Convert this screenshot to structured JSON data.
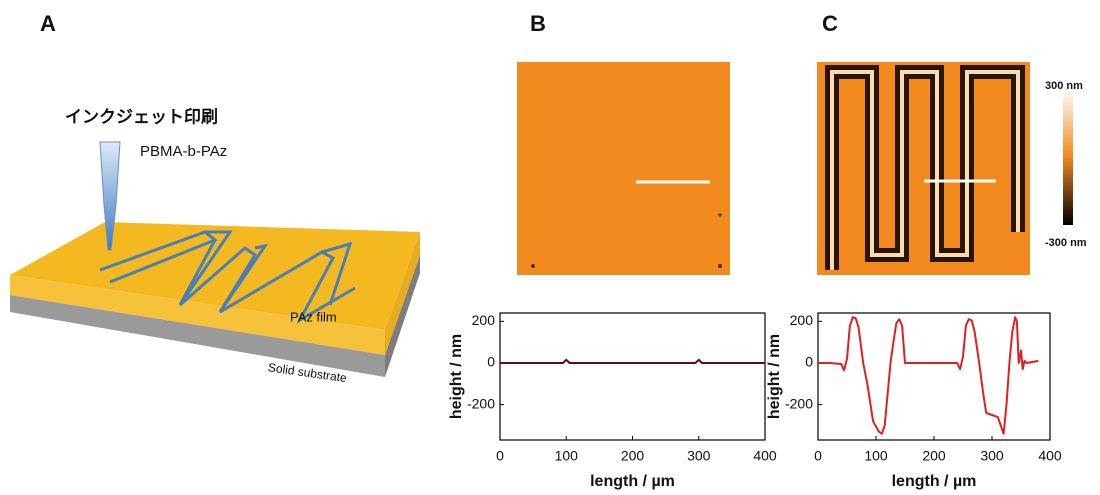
{
  "panels": {
    "a": {
      "label": "A",
      "process": "インクジェット印刷",
      "ink": "PBMA-b-PAz",
      "film": "PAz film",
      "substrate": "Solid substrate"
    },
    "b": {
      "label": "B"
    },
    "c": {
      "label": "C",
      "colorbar_max": "300 nm",
      "colorbar_min": "-300 nm"
    }
  },
  "chart_data": [
    {
      "type": "line",
      "xlabel": "length / µm",
      "ylabel": "height / nm",
      "xlim": [
        0,
        400
      ],
      "ylim": [
        -370,
        240
      ],
      "xticks": [
        0,
        100,
        200,
        300,
        400
      ],
      "yticks": [
        -200,
        0,
        200
      ],
      "series": [
        {
          "color": "#5a1010",
          "x": [
            0,
            95,
            100,
            105,
            295,
            300,
            305,
            400
          ],
          "values": [
            0,
            0,
            15,
            0,
            0,
            15,
            0,
            0
          ]
        }
      ]
    },
    {
      "type": "line",
      "xlabel": "length / µm",
      "ylabel": "height / nm",
      "xlim": [
        0,
        400
      ],
      "ylim": [
        -370,
        240
      ],
      "xticks": [
        0,
        100,
        200,
        300,
        400
      ],
      "yticks": [
        -200,
        0,
        200
      ],
      "series": [
        {
          "color": "#e02020",
          "x": [
            0,
            20,
            40,
            45,
            50,
            55,
            60,
            65,
            70,
            78,
            85,
            95,
            105,
            110,
            115,
            120,
            125,
            130,
            135,
            140,
            145,
            150,
            160,
            200,
            240,
            245,
            250,
            255,
            260,
            265,
            270,
            278,
            285,
            290,
            300,
            310,
            315,
            320,
            325,
            330,
            335,
            340,
            343,
            346,
            350,
            353,
            356,
            360,
            380
          ],
          "values": [
            0,
            0,
            -5,
            -35,
            20,
            180,
            220,
            215,
            170,
            0,
            -100,
            -280,
            -330,
            -340,
            -300,
            -150,
            0,
            100,
            190,
            210,
            180,
            0,
            0,
            0,
            0,
            -30,
            30,
            180,
            210,
            205,
            150,
            0,
            -150,
            -240,
            -250,
            -260,
            -300,
            -340,
            -200,
            0,
            150,
            220,
            200,
            0,
            60,
            -30,
            10,
            0,
            10
          ]
        }
      ]
    }
  ]
}
